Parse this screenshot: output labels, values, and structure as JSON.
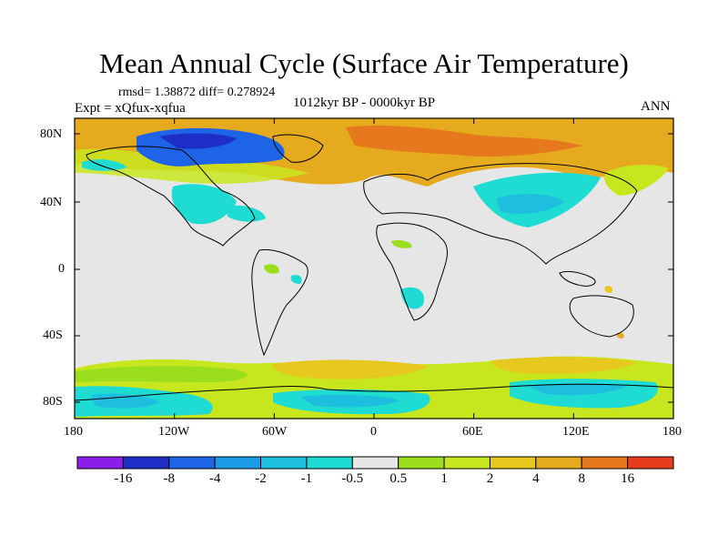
{
  "title": "Mean Annual Cycle (Surface Air Temperature)",
  "stats": "rmsd= 1.38872  diff= 0.278924",
  "experiment": "Expt = xQfux-xqfua",
  "period": "1012kyr BP - 0000kyr BP",
  "season": "ANN",
  "y_ticks": [
    "80N",
    "40N",
    "0",
    "40S",
    "80S"
  ],
  "x_ticks": [
    "180",
    "120W",
    "60W",
    "0",
    "60E",
    "120E",
    "180"
  ],
  "colorbar": {
    "colors": [
      "#8b1ee8",
      "#1e2fc8",
      "#1e64e6",
      "#1e9be6",
      "#1ebede",
      "#1edcd2",
      "#e6e6e6",
      "#9ade1e",
      "#c8e61e",
      "#e6c81e",
      "#e6aa1e",
      "#e6781e",
      "#e63c1e"
    ],
    "labels": [
      "-16",
      "-8",
      "-4",
      "-2",
      "-1",
      "-0.5",
      "0.5",
      "1",
      "2",
      "4",
      "8",
      "16"
    ]
  }
}
